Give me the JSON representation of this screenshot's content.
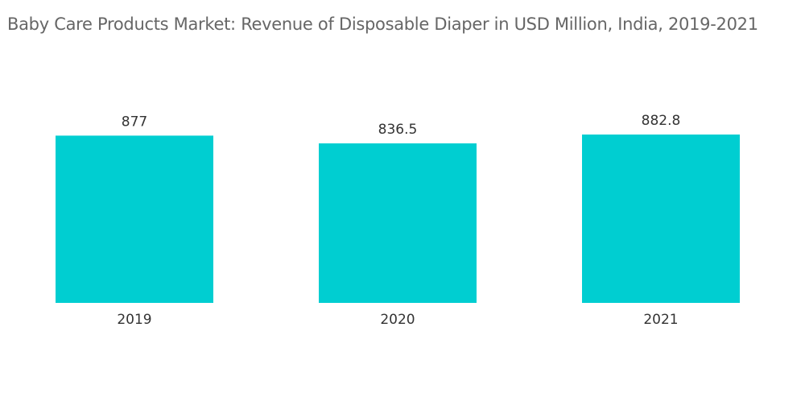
{
  "chart_data": {
    "type": "bar",
    "title": "Baby Care Products Market: Revenue of Disposable Diaper in USD Million, India, 2019-2021",
    "categories": [
      "2019",
      "2020",
      "2021"
    ],
    "values": [
      877,
      836.5,
      882.8
    ],
    "value_labels": [
      "877",
      "836.5",
      "882.8"
    ],
    "xlabel": "",
    "ylabel": "",
    "ylim": [
      0,
      882.8
    ],
    "grid": false,
    "legend": "none",
    "bar_color": "#00CED1"
  }
}
